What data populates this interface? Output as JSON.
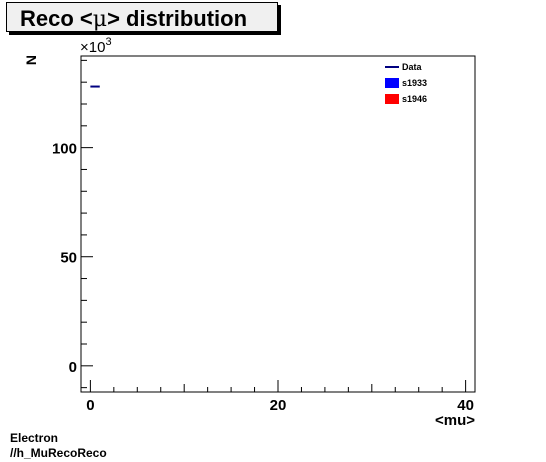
{
  "chart_data": {
    "type": "line",
    "title_prefix": "Reco <",
    "title_symbol": "μ",
    "title_suffix": "> distribution",
    "xlabel": "<mu>",
    "ylabel": "N",
    "y_exponent_label": "×10",
    "y_exponent": "3",
    "xlim": [
      -1,
      41
    ],
    "ylim": [
      -12,
      142
    ],
    "x_ticks": [
      0,
      20,
      40
    ],
    "y_ticks": [
      0,
      50,
      100
    ],
    "x_tick_labels": [
      "0",
      "20",
      "40"
    ],
    "y_tick_labels": [
      "0",
      "50",
      "100"
    ],
    "legend_position": "top-right",
    "series": [
      {
        "name": "Data",
        "style": "line",
        "color": "#000080",
        "points": [
          {
            "x_low": 0,
            "x_high": 1,
            "y": 128
          }
        ]
      },
      {
        "name": "s1933",
        "style": "fill",
        "color": "#0000ff",
        "points": []
      },
      {
        "name": "s1946",
        "style": "fill",
        "color": "#ff0000",
        "points": []
      }
    ]
  },
  "footer": {
    "line1": "Electron",
    "line2": "//h_MuRecoReco"
  }
}
